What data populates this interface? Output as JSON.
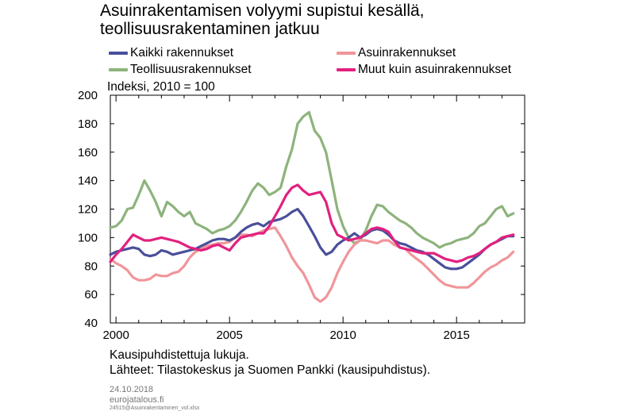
{
  "title_line1": "Asuinrakentamisen volyymi supistui kesällä,",
  "title_line2": "teollisuusrakentaminen jatkuu",
  "legend": [
    {
      "label": "Kaikki rakennukset",
      "color": "#4a4f9a"
    },
    {
      "label": "Asuinrakennukset",
      "color": "#f0959a"
    },
    {
      "label": "Teollisuusrakennukset",
      "color": "#8db37c"
    },
    {
      "label": "Muut kuin asuinrakennukset",
      "color": "#e2207f"
    }
  ],
  "ylabel": "Indeksi, 2010 = 100",
  "note": "Kausipuhdistettuja lukuja.",
  "sources": "Lähteet: Tilastokeskus ja Suomen Pankki (kausipuhdistus).",
  "date": "24.10.2018",
  "site": "eurojatalous.fi",
  "file_id": "24515@Asuinrakentaminen_vol.xlsx",
  "chart_data": {
    "type": "line",
    "title": "Asuinrakentamisen volyymi supistui kesällä, teollisuusrakentaminen jatkuu",
    "ylabel": "Indeksi, 2010 = 100",
    "xlabel": "",
    "ylim": [
      40,
      200
    ],
    "yticks": [
      40,
      60,
      80,
      100,
      120,
      140,
      160,
      180,
      200
    ],
    "xlim": [
      1999.75,
      2018.0
    ],
    "xticks": [
      2000,
      2005,
      2010,
      2015
    ],
    "xtick_labels": [
      "2000",
      "2005",
      "2010",
      "2015"
    ],
    "grid": false,
    "legend_position": "top",
    "series": [
      {
        "name": "Kaikki rakennukset",
        "color": "#4a4f9a",
        "x": [
          1999.75,
          2000.0,
          2000.25,
          2000.5,
          2000.75,
          2001.0,
          2001.25,
          2001.5,
          2001.75,
          2002.0,
          2002.25,
          2002.5,
          2002.75,
          2003.0,
          2003.25,
          2003.5,
          2003.75,
          2004.0,
          2004.25,
          2004.5,
          2004.75,
          2005.0,
          2005.25,
          2005.5,
          2005.75,
          2006.0,
          2006.25,
          2006.5,
          2006.75,
          2007.0,
          2007.25,
          2007.5,
          2007.75,
          2008.0,
          2008.25,
          2008.5,
          2008.75,
          2009.0,
          2009.25,
          2009.5,
          2009.75,
          2010.0,
          2010.25,
          2010.5,
          2010.75,
          2011.0,
          2011.25,
          2011.5,
          2011.75,
          2012.0,
          2012.25,
          2012.5,
          2012.75,
          2013.0,
          2013.25,
          2013.5,
          2013.75,
          2014.0,
          2014.25,
          2014.5,
          2014.75,
          2015.0,
          2015.25,
          2015.5,
          2015.75,
          2016.0,
          2016.25,
          2016.5,
          2016.75,
          2017.0,
          2017.25,
          2017.5
        ],
        "values": [
          88,
          90,
          91,
          92,
          93,
          92,
          88,
          87,
          88,
          91,
          90,
          88,
          89,
          90,
          91,
          92,
          94,
          96,
          98,
          99,
          99,
          98,
          100,
          104,
          107,
          109,
          110,
          108,
          111,
          112,
          113,
          115,
          118,
          120,
          115,
          108,
          101,
          93,
          88,
          90,
          95,
          98,
          100,
          103,
          100,
          102,
          105,
          106,
          105,
          102,
          98,
          96,
          95,
          93,
          91,
          90,
          88,
          85,
          82,
          79,
          78,
          78,
          79,
          82,
          85,
          88,
          92,
          95,
          97,
          99,
          101,
          101
        ]
      },
      {
        "name": "Asuinrakennukset",
        "color": "#f0959a",
        "x": [
          1999.75,
          2000.0,
          2000.25,
          2000.5,
          2000.75,
          2001.0,
          2001.25,
          2001.5,
          2001.75,
          2002.0,
          2002.25,
          2002.5,
          2002.75,
          2003.0,
          2003.25,
          2003.5,
          2003.75,
          2004.0,
          2004.25,
          2004.5,
          2004.75,
          2005.0,
          2005.25,
          2005.5,
          2005.75,
          2006.0,
          2006.25,
          2006.5,
          2006.75,
          2007.0,
          2007.25,
          2007.5,
          2007.75,
          2008.0,
          2008.25,
          2008.5,
          2008.75,
          2009.0,
          2009.25,
          2009.5,
          2009.75,
          2010.0,
          2010.25,
          2010.5,
          2010.75,
          2011.0,
          2011.25,
          2011.5,
          2011.75,
          2012.0,
          2012.25,
          2012.5,
          2012.75,
          2013.0,
          2013.25,
          2013.5,
          2013.75,
          2014.0,
          2014.25,
          2014.5,
          2014.75,
          2015.0,
          2015.25,
          2015.5,
          2015.75,
          2016.0,
          2016.25,
          2016.5,
          2016.75,
          2017.0,
          2017.25,
          2017.5
        ],
        "values": [
          85,
          82,
          80,
          77,
          72,
          70,
          70,
          71,
          74,
          73,
          73,
          75,
          76,
          80,
          86,
          90,
          92,
          94,
          95,
          96,
          96,
          97,
          100,
          102,
          102,
          101,
          103,
          105,
          106,
          107,
          101,
          94,
          86,
          80,
          75,
          67,
          58,
          55,
          58,
          65,
          75,
          83,
          90,
          95,
          98,
          98,
          97,
          96,
          98,
          98,
          95,
          93,
          92,
          88,
          85,
          82,
          78,
          74,
          70,
          67,
          66,
          65,
          65,
          65,
          68,
          72,
          76,
          79,
          81,
          84,
          86,
          90
        ]
      },
      {
        "name": "Teollisuusrakennukset",
        "color": "#8db37c",
        "x": [
          1999.75,
          2000.0,
          2000.25,
          2000.5,
          2000.75,
          2001.0,
          2001.25,
          2001.5,
          2001.75,
          2002.0,
          2002.25,
          2002.5,
          2002.75,
          2003.0,
          2003.25,
          2003.5,
          2003.75,
          2004.0,
          2004.25,
          2004.5,
          2004.75,
          2005.0,
          2005.25,
          2005.5,
          2005.75,
          2006.0,
          2006.25,
          2006.5,
          2006.75,
          2007.0,
          2007.25,
          2007.5,
          2007.75,
          2008.0,
          2008.25,
          2008.5,
          2008.75,
          2009.0,
          2009.25,
          2009.5,
          2009.75,
          2010.0,
          2010.25,
          2010.5,
          2010.75,
          2011.0,
          2011.25,
          2011.5,
          2011.75,
          2012.0,
          2012.25,
          2012.5,
          2012.75,
          2013.0,
          2013.25,
          2013.5,
          2013.75,
          2014.0,
          2014.25,
          2014.5,
          2014.75,
          2015.0,
          2015.25,
          2015.5,
          2015.75,
          2016.0,
          2016.25,
          2016.5,
          2016.75,
          2017.0,
          2017.25,
          2017.5
        ],
        "values": [
          107,
          108,
          112,
          120,
          121,
          130,
          140,
          133,
          125,
          115,
          125,
          122,
          118,
          115,
          118,
          110,
          108,
          106,
          103,
          105,
          106,
          108,
          112,
          118,
          125,
          133,
          138,
          135,
          130,
          132,
          135,
          150,
          162,
          180,
          185,
          188,
          175,
          170,
          160,
          140,
          120,
          108,
          100,
          96,
          98,
          105,
          115,
          123,
          122,
          118,
          115,
          112,
          110,
          107,
          103,
          100,
          98,
          96,
          93,
          95,
          96,
          98,
          99,
          100,
          103,
          108,
          110,
          115,
          120,
          122,
          115,
          117
        ]
      },
      {
        "name": "Muut kuin asuinrakennukset",
        "color": "#e2207f",
        "x": [
          1999.75,
          2000.0,
          2000.25,
          2000.5,
          2000.75,
          2001.0,
          2001.25,
          2001.5,
          2001.75,
          2002.0,
          2002.25,
          2002.5,
          2002.75,
          2003.0,
          2003.25,
          2003.5,
          2003.75,
          2004.0,
          2004.25,
          2004.5,
          2004.75,
          2005.0,
          2005.25,
          2005.5,
          2005.75,
          2006.0,
          2006.25,
          2006.5,
          2006.75,
          2007.0,
          2007.25,
          2007.5,
          2007.75,
          2008.0,
          2008.25,
          2008.5,
          2008.75,
          2009.0,
          2009.25,
          2009.5,
          2009.75,
          2010.0,
          2010.25,
          2010.5,
          2010.75,
          2011.0,
          2011.25,
          2011.5,
          2011.75,
          2012.0,
          2012.25,
          2012.5,
          2012.75,
          2013.0,
          2013.25,
          2013.5,
          2013.75,
          2014.0,
          2014.25,
          2014.5,
          2014.75,
          2015.0,
          2015.25,
          2015.5,
          2015.75,
          2016.0,
          2016.25,
          2016.5,
          2016.75,
          2017.0,
          2017.25,
          2017.5
        ],
        "values": [
          83,
          88,
          92,
          97,
          102,
          100,
          98,
          98,
          99,
          100,
          99,
          98,
          97,
          95,
          93,
          92,
          91,
          92,
          94,
          95,
          93,
          91,
          96,
          100,
          101,
          102,
          103,
          103,
          108,
          115,
          122,
          130,
          135,
          137,
          133,
          130,
          131,
          132,
          125,
          110,
          102,
          100,
          98,
          99,
          100,
          103,
          106,
          107,
          106,
          104,
          98,
          93,
          92,
          91,
          90,
          89,
          89,
          89,
          87,
          85,
          84,
          83,
          84,
          86,
          87,
          89,
          92,
          95,
          97,
          100,
          101,
          102
        ]
      }
    ]
  }
}
